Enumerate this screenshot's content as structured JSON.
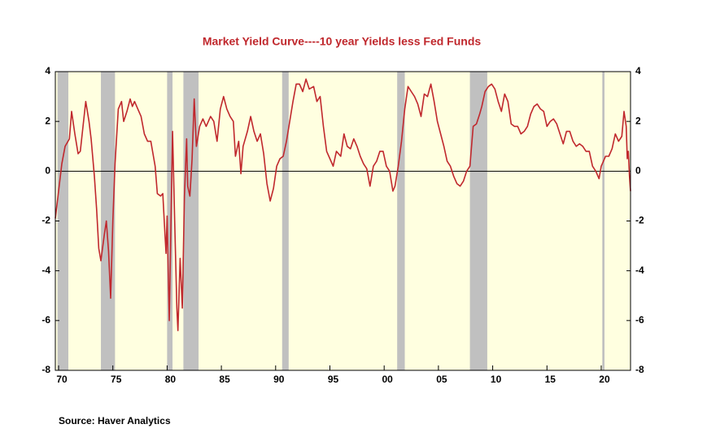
{
  "chart_data": {
    "type": "line",
    "title": "Market Yield Curve----10 year Yields less Fed Funds",
    "source": "Source:  Haver Analytics",
    "color": "#c0282d",
    "background": "#ffffe0",
    "shade_color": "#c0c0c0",
    "shaded_periods": [
      [
        1969.9,
        1970.9
      ],
      [
        1973.9,
        1975.2
      ],
      [
        1980.0,
        1980.5
      ],
      [
        1981.5,
        1982.9
      ],
      [
        1990.6,
        1991.2
      ],
      [
        2001.2,
        2001.9
      ],
      [
        2007.9,
        2009.5
      ],
      [
        2020.1,
        2020.3
      ]
    ],
    "xlim": [
      1969.7,
      2022.7
    ],
    "xticks": [
      {
        "value": 1970,
        "label": "70"
      },
      {
        "value": 1975,
        "label": "75"
      },
      {
        "value": 1980,
        "label": "80"
      },
      {
        "value": 1985,
        "label": "85"
      },
      {
        "value": 1990,
        "label": "90"
      },
      {
        "value": 1995,
        "label": "95"
      },
      {
        "value": 2000,
        "label": "00"
      },
      {
        "value": 2005,
        "label": "05"
      },
      {
        "value": 2010,
        "label": "10"
      },
      {
        "value": 2015,
        "label": "15"
      },
      {
        "value": 2020,
        "label": "20"
      }
    ],
    "ylim": [
      -8,
      4
    ],
    "yticks": [
      -8,
      -6,
      -4,
      -2,
      0,
      2,
      4
    ],
    "x": [
      1969.7,
      1970.0,
      1970.3,
      1970.6,
      1971.0,
      1971.2,
      1971.5,
      1971.8,
      1972.0,
      1972.3,
      1972.5,
      1972.8,
      1973.0,
      1973.3,
      1973.5,
      1973.7,
      1973.9,
      1974.2,
      1974.4,
      1974.6,
      1974.8,
      1975.0,
      1975.2,
      1975.5,
      1975.8,
      1976.0,
      1976.3,
      1976.6,
      1976.8,
      1977.0,
      1977.3,
      1977.6,
      1977.9,
      1978.2,
      1978.5,
      1978.9,
      1979.1,
      1979.4,
      1979.6,
      1979.8,
      1979.9,
      1980.0,
      1980.1,
      1980.2,
      1980.4,
      1980.5,
      1980.7,
      1980.9,
      1981.0,
      1981.2,
      1981.4,
      1981.6,
      1981.8,
      1981.9,
      1982.1,
      1982.3,
      1982.5,
      1982.7,
      1983.0,
      1983.3,
      1983.6,
      1984.0,
      1984.3,
      1984.6,
      1984.9,
      1985.2,
      1985.5,
      1985.8,
      1986.1,
      1986.3,
      1986.6,
      1986.8,
      1987.0,
      1987.4,
      1987.7,
      1988.0,
      1988.3,
      1988.6,
      1988.9,
      1989.2,
      1989.5,
      1989.8,
      1990.1,
      1990.4,
      1990.7,
      1991.0,
      1991.3,
      1991.6,
      1991.9,
      1992.2,
      1992.5,
      1992.8,
      1993.1,
      1993.5,
      1993.8,
      1994.1,
      1994.4,
      1994.7,
      1995.0,
      1995.3,
      1995.6,
      1996.0,
      1996.3,
      1996.6,
      1996.9,
      1997.2,
      1997.5,
      1997.8,
      1998.1,
      1998.4,
      1998.7,
      1999.0,
      1999.3,
      1999.6,
      1999.9,
      2000.2,
      2000.5,
      2000.8,
      2001.0,
      2001.3,
      2001.6,
      2001.9,
      2002.2,
      2002.5,
      2002.8,
      2003.1,
      2003.4,
      2003.7,
      2004.0,
      2004.3,
      2004.6,
      2004.9,
      2005.2,
      2005.5,
      2005.8,
      2006.1,
      2006.4,
      2006.7,
      2007.0,
      2007.3,
      2007.6,
      2007.9,
      2008.2,
      2008.5,
      2008.8,
      2009.0,
      2009.3,
      2009.6,
      2009.9,
      2010.2,
      2010.5,
      2010.8,
      2011.1,
      2011.4,
      2011.7,
      2012.0,
      2012.3,
      2012.6,
      2012.9,
      2013.2,
      2013.5,
      2013.8,
      2014.1,
      2014.4,
      2014.7,
      2015.0,
      2015.3,
      2015.6,
      2015.9,
      2016.2,
      2016.5,
      2016.8,
      2017.1,
      2017.4,
      2017.7,
      2018.0,
      2018.3,
      2018.6,
      2018.9,
      2019.2,
      2019.5,
      2019.8,
      2020.0,
      2020.2,
      2020.4,
      2020.7,
      2021.0,
      2021.3,
      2021.6,
      2021.9,
      2022.1,
      2022.3,
      2022.4,
      2022.5,
      2022.6,
      2022.7
    ],
    "values": [
      -1.9,
      -0.8,
      0.3,
      1.0,
      1.3,
      2.4,
      1.5,
      0.7,
      0.8,
      2.0,
      2.8,
      2.0,
      1.3,
      -0.2,
      -1.5,
      -3.1,
      -3.6,
      -2.6,
      -2.0,
      -3.2,
      -5.1,
      -2.0,
      0.3,
      2.5,
      2.8,
      2.0,
      2.4,
      2.9,
      2.6,
      2.8,
      2.5,
      2.2,
      1.5,
      1.2,
      1.2,
      0.2,
      -0.9,
      -1.0,
      -0.9,
      -2.5,
      -3.3,
      -1.8,
      -4.0,
      -6.0,
      -1.0,
      1.6,
      -2.0,
      -5.5,
      -6.4,
      -3.5,
      -5.5,
      -1.0,
      1.3,
      -0.6,
      -1.0,
      0.5,
      2.9,
      1.0,
      1.8,
      2.1,
      1.8,
      2.2,
      2.0,
      1.2,
      2.5,
      3.0,
      2.5,
      2.2,
      2.0,
      0.6,
      1.2,
      -0.1,
      1.0,
      1.6,
      2.2,
      1.6,
      1.2,
      1.5,
      0.7,
      -0.5,
      -1.2,
      -0.7,
      0.2,
      0.5,
      0.6,
      1.2,
      2.0,
      2.8,
      3.5,
      3.5,
      3.2,
      3.7,
      3.3,
      3.4,
      2.8,
      3.0,
      1.8,
      0.8,
      0.5,
      0.2,
      0.8,
      0.6,
      1.5,
      1.0,
      0.9,
      1.3,
      1.0,
      0.6,
      0.3,
      0.1,
      -0.6,
      0.2,
      0.4,
      0.8,
      0.8,
      0.2,
      0.0,
      -0.8,
      -0.6,
      0.2,
      1.2,
      2.5,
      3.4,
      3.2,
      3.0,
      2.7,
      2.2,
      3.1,
      3.0,
      3.5,
      2.8,
      2.0,
      1.5,
      1.0,
      0.4,
      0.2,
      -0.2,
      -0.5,
      -0.6,
      -0.4,
      0.0,
      0.2,
      1.8,
      1.9,
      2.3,
      2.6,
      3.2,
      3.4,
      3.5,
      3.3,
      2.8,
      2.4,
      3.1,
      2.8,
      1.9,
      1.8,
      1.8,
      1.5,
      1.6,
      1.8,
      2.3,
      2.6,
      2.7,
      2.5,
      2.4,
      1.8,
      2.0,
      2.1,
      1.9,
      1.5,
      1.1,
      1.6,
      1.6,
      1.2,
      1.0,
      1.1,
      1.0,
      0.8,
      0.8,
      0.2,
      0.0,
      -0.3,
      0.2,
      0.4,
      0.6,
      0.6,
      0.9,
      1.5,
      1.2,
      1.4,
      2.4,
      1.8,
      0.5,
      0.8,
      -0.2,
      -0.8
    ]
  }
}
